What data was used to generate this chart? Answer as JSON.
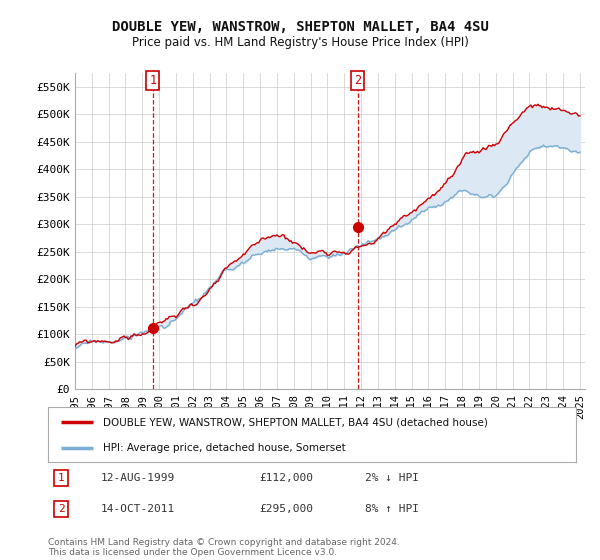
{
  "title": "DOUBLE YEW, WANSTROW, SHEPTON MALLET, BA4 4SU",
  "subtitle": "Price paid vs. HM Land Registry's House Price Index (HPI)",
  "background_color": "#ffffff",
  "plot_bg_color": "#ffffff",
  "grid_color": "#cccccc",
  "fill_color": "#dce9f5",
  "ylim": [
    0,
    575000
  ],
  "yticks": [
    0,
    50000,
    100000,
    150000,
    200000,
    250000,
    300000,
    350000,
    400000,
    450000,
    500000,
    550000
  ],
  "ytick_labels": [
    "£0",
    "£50K",
    "£100K",
    "£150K",
    "£200K",
    "£250K",
    "£300K",
    "£350K",
    "£400K",
    "£450K",
    "£500K",
    "£550K"
  ],
  "legend_line1": "DOUBLE YEW, WANSTROW, SHEPTON MALLET, BA4 4SU (detached house)",
  "legend_line2": "HPI: Average price, detached house, Somerset",
  "legend_color1": "#cc0000",
  "legend_color2": "#7aadd4",
  "transaction1_label": "1",
  "transaction1_date": "12-AUG-1999",
  "transaction1_price": "£112,000",
  "transaction1_hpi": "2% ↓ HPI",
  "transaction1_x": 1999.62,
  "transaction1_y": 112000,
  "transaction2_label": "2",
  "transaction2_date": "14-OCT-2011",
  "transaction2_price": "£295,000",
  "transaction2_hpi": "8% ↑ HPI",
  "transaction2_x": 2011.79,
  "transaction2_y": 295000,
  "footer": "Contains HM Land Registry data © Crown copyright and database right 2024.\nThis data is licensed under the Open Government Licence v3.0.",
  "hpi_color": "#7aadd4",
  "price_color": "#cc0000",
  "xtick_years": [
    1995,
    1996,
    1997,
    1998,
    1999,
    2000,
    2001,
    2002,
    2003,
    2004,
    2005,
    2006,
    2007,
    2008,
    2009,
    2010,
    2011,
    2012,
    2013,
    2014,
    2015,
    2016,
    2017,
    2018,
    2019,
    2020,
    2021,
    2022,
    2023,
    2024,
    2025
  ]
}
